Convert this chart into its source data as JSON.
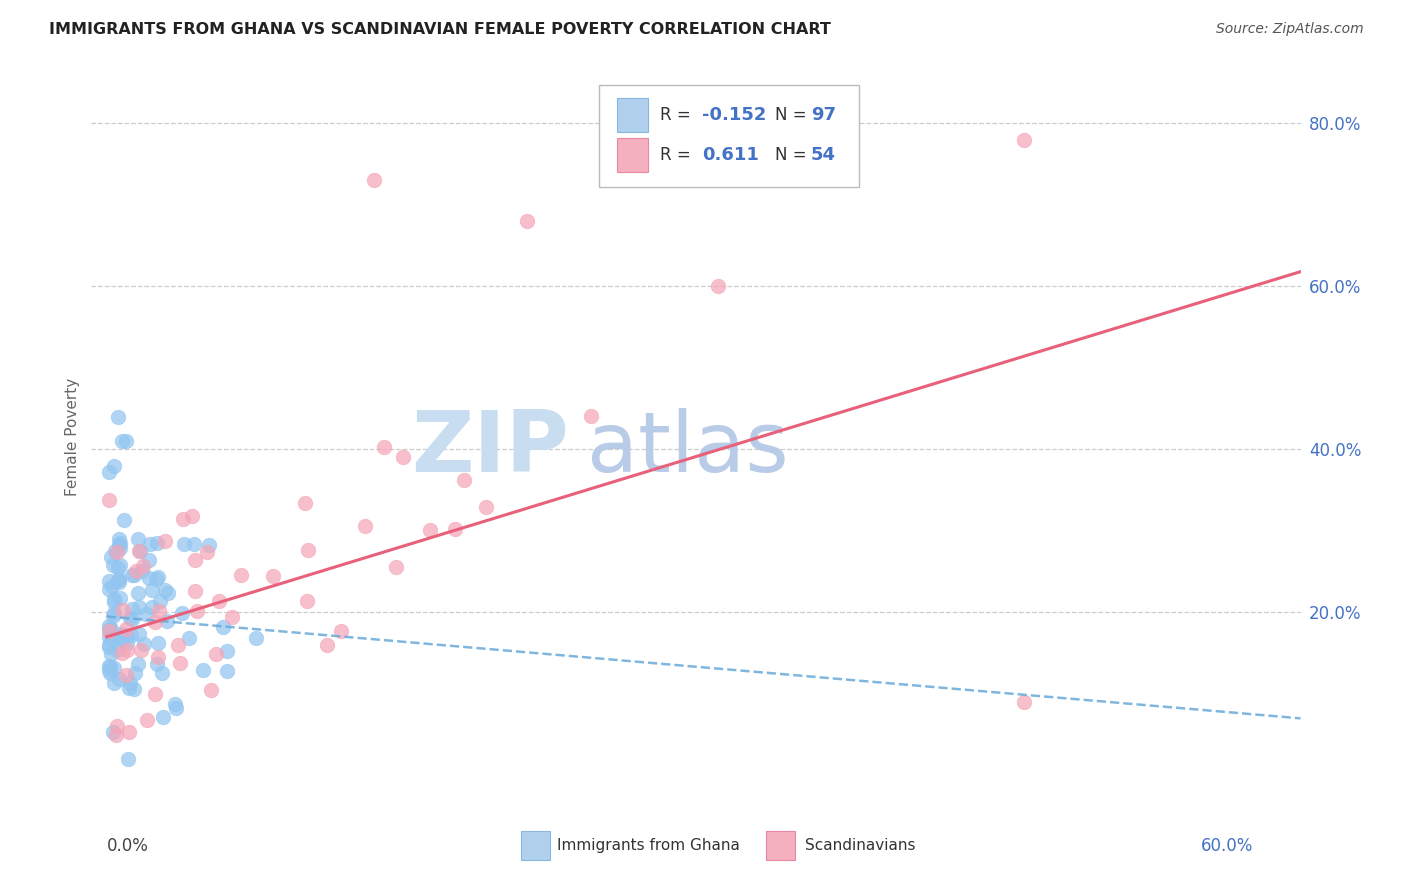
{
  "title": "IMMIGRANTS FROM GHANA VS SCANDINAVIAN FEMALE POVERTY CORRELATION CHART",
  "source": "Source: ZipAtlas.com",
  "ylabel": "Female Poverty",
  "ghana_color": "#92c5f0",
  "scandi_color": "#f4a5b8",
  "ghana_line_color": "#6aaad8",
  "scandi_line_color": "#e8607a",
  "grid_color": "#cccccc",
  "right_tick_color": "#4472c4",
  "watermark_zip_color": "#c8ddf0",
  "watermark_atlas_color": "#b8cce8",
  "ytick_vals": [
    0.2,
    0.4,
    0.6,
    0.8
  ],
  "ytick_labels": [
    "20.0%",
    "40.0%",
    "60.0%",
    "80.0%"
  ],
  "xlim": [
    -0.008,
    0.625
  ],
  "ylim": [
    -0.05,
    0.88
  ],
  "scandi_trend_x0": 0.0,
  "scandi_trend_y0": 0.17,
  "scandi_trend_x1": 0.6,
  "scandi_trend_y1": 0.6,
  "ghana_trend_x0": 0.0,
  "ghana_trend_y0": 0.195,
  "ghana_trend_x1": 0.2,
  "ghana_trend_y1": 0.155
}
